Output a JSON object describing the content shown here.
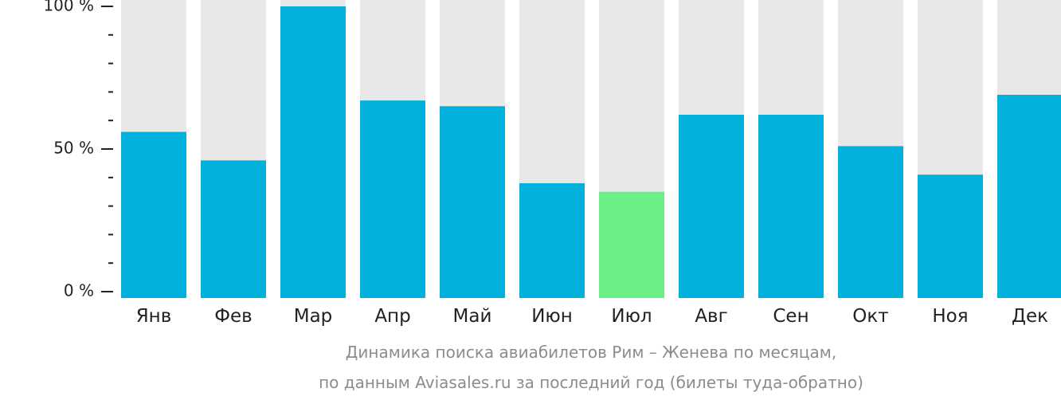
{
  "chart_data": {
    "type": "bar",
    "categories": [
      "Янв",
      "Фев",
      "Мар",
      "Апр",
      "Май",
      "Июн",
      "Июл",
      "Авг",
      "Сен",
      "Окт",
      "Ноя",
      "Дек"
    ],
    "values": [
      56,
      46,
      100,
      67,
      65,
      38,
      35,
      62,
      62,
      51,
      41,
      69
    ],
    "ylim": [
      0,
      100
    ],
    "yticks": [
      {
        "value": 100,
        "label": "100 %"
      },
      {
        "value": 50,
        "label": "50 %"
      },
      {
        "value": 0,
        "label": "0 %"
      }
    ],
    "minor_tick_step": 10,
    "highlight_index": 6,
    "colors": {
      "bar": "#02b0dc",
      "highlight": "#6af086",
      "background": "#e8e8e8",
      "axis": "#222222"
    },
    "caption": [
      "Динамика поиска авиабилетов Рим – Женева по месяцам,",
      "по данным Aviasales.ru за последний год (билеты туда-обратно)"
    ]
  }
}
